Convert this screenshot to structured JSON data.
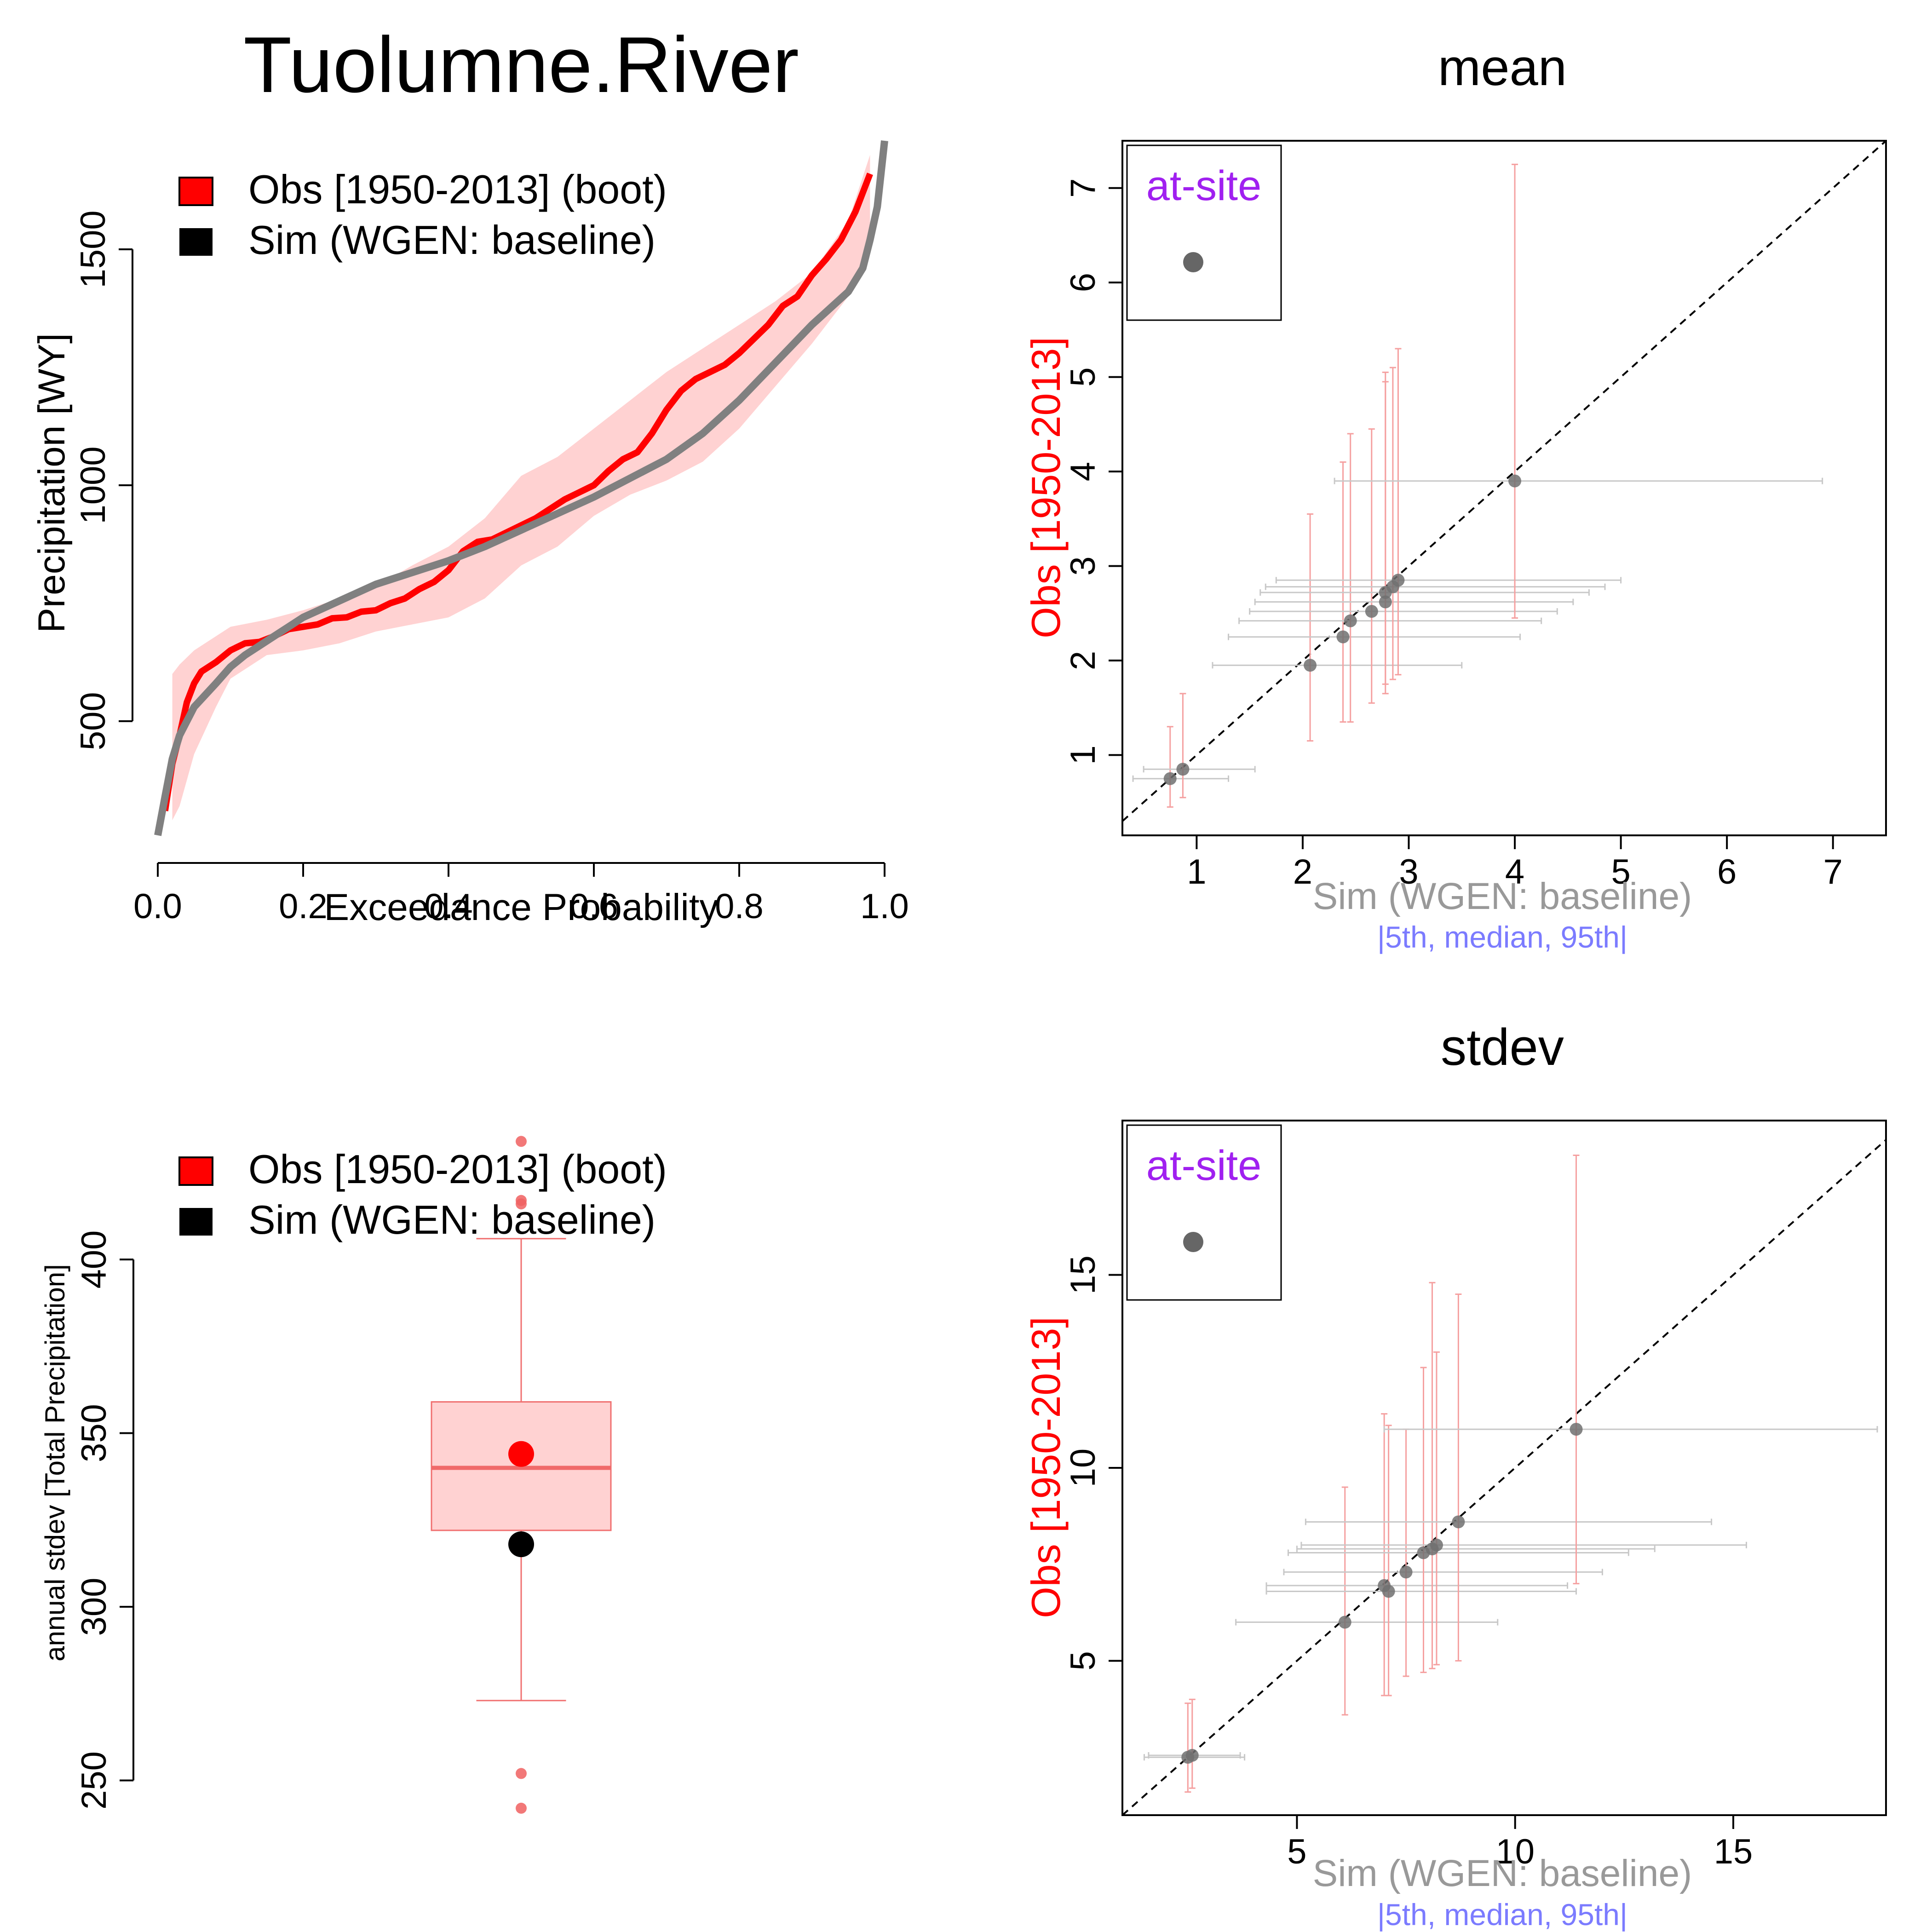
{
  "figure_title": "Tuolumne.River",
  "colors": {
    "obs": "#ff0000",
    "obs_band": "#ffd2d2",
    "sim": "#808080",
    "sim_marker": "#000000",
    "identity_line": "#000000",
    "legend_at_site": "#a020f0",
    "interval_caption": "#7b7bff",
    "sim_axis_label": "#999999"
  },
  "legends": {
    "top_left": [
      {
        "label": "Obs [1950-2013] (boot)",
        "color": "#ff0000"
      },
      {
        "label": "Sim (WGEN: baseline)",
        "color": "#000000"
      }
    ],
    "bottom_left": [
      {
        "label": "Obs [1950-2013] (boot)",
        "color": "#ff0000"
      },
      {
        "label": "Sim (WGEN: baseline)",
        "color": "#000000"
      }
    ],
    "at_site_label": "at-site"
  },
  "chart_data": [
    {
      "id": "exceedance",
      "type": "line",
      "title": "",
      "xlabel": "Exceedance Probability",
      "ylabel": "Precipitation [WY]",
      "xlim": [
        0,
        1
      ],
      "ylim": [
        258,
        1730
      ],
      "x_ticks": [
        0.0,
        0.2,
        0.4,
        0.6,
        0.8,
        1.0
      ],
      "x_tick_labels": [
        "0.0",
        "0.2",
        "0.4",
        "0.6",
        "0.8",
        "1.0"
      ],
      "y_ticks": [
        500,
        1000,
        1500
      ],
      "y_tick_labels": [
        "500",
        "1000",
        "1500"
      ],
      "legend_position": "top-left",
      "series": [
        {
          "name": "Obs [1950-2013] (boot)",
          "kind": "line",
          "x": [
            0.01,
            0.02,
            0.03,
            0.04,
            0.05,
            0.06,
            0.08,
            0.1,
            0.12,
            0.14,
            0.16,
            0.18,
            0.2,
            0.22,
            0.24,
            0.26,
            0.28,
            0.3,
            0.32,
            0.34,
            0.36,
            0.38,
            0.4,
            0.42,
            0.44,
            0.46,
            0.48,
            0.5,
            0.52,
            0.54,
            0.56,
            0.58,
            0.6,
            0.62,
            0.64,
            0.66,
            0.68,
            0.7,
            0.72,
            0.74,
            0.76,
            0.78,
            0.8,
            0.82,
            0.84,
            0.86,
            0.88,
            0.9,
            0.92,
            0.94,
            0.96,
            0.98
          ],
          "y": [
            310,
            410,
            470,
            540,
            580,
            605,
            625,
            650,
            665,
            668,
            680,
            695,
            700,
            705,
            718,
            720,
            732,
            735,
            750,
            760,
            780,
            795,
            820,
            860,
            880,
            885,
            900,
            915,
            930,
            950,
            970,
            985,
            1000,
            1030,
            1055,
            1070,
            1110,
            1160,
            1200,
            1225,
            1240,
            1255,
            1280,
            1310,
            1340,
            1380,
            1400,
            1445,
            1480,
            1520,
            1580,
            1660
          ]
        },
        {
          "name": "Obs band lower",
          "kind": "band_lower",
          "x": [
            0.02,
            0.03,
            0.05,
            0.08,
            0.1,
            0.15,
            0.2,
            0.25,
            0.3,
            0.35,
            0.4,
            0.45,
            0.5,
            0.55,
            0.6,
            0.65,
            0.7,
            0.75,
            0.8,
            0.85,
            0.9,
            0.95,
            0.98
          ],
          "y": [
            290,
            320,
            430,
            530,
            590,
            640,
            650,
            665,
            690,
            705,
            720,
            760,
            830,
            870,
            935,
            980,
            1010,
            1050,
            1120,
            1210,
            1300,
            1400,
            1500
          ]
        },
        {
          "name": "Obs band upper",
          "kind": "band_upper",
          "x": [
            0.02,
            0.03,
            0.05,
            0.08,
            0.1,
            0.15,
            0.2,
            0.25,
            0.3,
            0.35,
            0.4,
            0.45,
            0.5,
            0.55,
            0.6,
            0.65,
            0.7,
            0.75,
            0.8,
            0.85,
            0.9,
            0.95,
            0.98
          ],
          "y": [
            600,
            620,
            650,
            680,
            700,
            715,
            735,
            760,
            785,
            830,
            870,
            930,
            1020,
            1060,
            1120,
            1180,
            1240,
            1290,
            1340,
            1390,
            1450,
            1560,
            1700
          ]
        },
        {
          "name": "Sim (WGEN: baseline)",
          "kind": "line",
          "x": [
            0.0,
            0.01,
            0.02,
            0.03,
            0.05,
            0.08,
            0.1,
            0.12,
            0.15,
            0.2,
            0.25,
            0.3,
            0.35,
            0.4,
            0.45,
            0.5,
            0.55,
            0.6,
            0.65,
            0.7,
            0.75,
            0.8,
            0.85,
            0.9,
            0.95,
            0.97,
            0.98,
            0.99,
            1.0
          ],
          "y": [
            258,
            340,
            420,
            470,
            530,
            580,
            615,
            640,
            670,
            720,
            755,
            790,
            815,
            840,
            870,
            905,
            940,
            975,
            1015,
            1055,
            1110,
            1180,
            1260,
            1340,
            1410,
            1460,
            1520,
            1590,
            1730
          ]
        }
      ]
    },
    {
      "id": "mean",
      "type": "scatter",
      "title": "mean",
      "xlabel": "Sim (WGEN: baseline)",
      "xlabel_caption": "|5th, median, 95th|",
      "ylabel": "Obs [1950-2013]",
      "xlim": [
        0.3,
        7.5
      ],
      "ylim": [
        0.15,
        7.5
      ],
      "x_ticks": [
        1,
        2,
        3,
        4,
        5,
        6,
        7
      ],
      "x_tick_labels": [
        "1",
        "2",
        "3",
        "4",
        "5",
        "6",
        "7"
      ],
      "y_ticks": [
        1,
        2,
        3,
        4,
        5,
        6,
        7
      ],
      "y_tick_labels": [
        "1",
        "2",
        "3",
        "4",
        "5",
        "6",
        "7"
      ],
      "identity_line": true,
      "legend_position": "top-left",
      "points": [
        {
          "x": 0.75,
          "y": 0.75,
          "x_lo": 0.4,
          "x_hi": 1.3,
          "y_lo": 0.45,
          "y_hi": 1.3
        },
        {
          "x": 0.87,
          "y": 0.85,
          "x_lo": 0.5,
          "x_hi": 1.55,
          "y_lo": 0.55,
          "y_hi": 1.65
        },
        {
          "x": 2.07,
          "y": 1.95,
          "x_lo": 1.15,
          "x_hi": 3.5,
          "y_lo": 1.15,
          "y_hi": 3.55
        },
        {
          "x": 2.38,
          "y": 2.25,
          "x_lo": 1.3,
          "x_hi": 4.05,
          "y_lo": 1.35,
          "y_hi": 4.1
        },
        {
          "x": 2.45,
          "y": 2.42,
          "x_lo": 1.4,
          "x_hi": 4.25,
          "y_lo": 1.35,
          "y_hi": 4.4
        },
        {
          "x": 2.65,
          "y": 2.52,
          "x_lo": 1.5,
          "x_hi": 4.4,
          "y_lo": 1.55,
          "y_hi": 4.45
        },
        {
          "x": 2.78,
          "y": 2.62,
          "x_lo": 1.55,
          "x_hi": 4.55,
          "y_lo": 1.65,
          "y_hi": 5.05
        },
        {
          "x": 2.78,
          "y": 2.72,
          "x_lo": 1.6,
          "x_hi": 4.7,
          "y_lo": 1.75,
          "y_hi": 4.95
        },
        {
          "x": 2.85,
          "y": 2.78,
          "x_lo": 1.65,
          "x_hi": 4.85,
          "y_lo": 1.8,
          "y_hi": 5.1
        },
        {
          "x": 2.9,
          "y": 2.85,
          "x_lo": 1.75,
          "x_hi": 5.0,
          "y_lo": 1.85,
          "y_hi": 5.3
        },
        {
          "x": 4.0,
          "y": 3.9,
          "x_lo": 2.3,
          "x_hi": 6.9,
          "y_lo": 2.45,
          "y_hi": 7.25
        }
      ]
    },
    {
      "id": "stdev_box",
      "type": "box",
      "title": "",
      "xlabel": "",
      "ylabel": "annual stdev [Total Precipitation]",
      "ylim": [
        240,
        440
      ],
      "y_ticks": [
        250,
        300,
        350,
        400
      ],
      "y_tick_labels": [
        "250",
        "300",
        "350",
        "400"
      ],
      "legend_position": "top-left",
      "box": {
        "whisker_low": 273,
        "q1": 322,
        "median": 340,
        "q3": 359,
        "whisker_high": 406
      },
      "outliers": [
        434,
        417,
        416,
        252,
        242
      ],
      "obs_point": 344,
      "sim_point": 318
    },
    {
      "id": "stdev",
      "type": "scatter",
      "title": "stdev",
      "xlabel": "Sim (WGEN: baseline)",
      "xlabel_caption": "|5th, median, 95th|",
      "ylabel": "Obs [1950-2013]",
      "xlim": [
        1.0,
        18.5
      ],
      "ylim": [
        1.0,
        19.0
      ],
      "x_ticks": [
        5,
        10,
        15
      ],
      "x_tick_labels": [
        "5",
        "10",
        "15"
      ],
      "y_ticks": [
        5,
        10,
        15
      ],
      "y_tick_labels": [
        "5",
        "10",
        "15"
      ],
      "identity_line": true,
      "legend_position": "top-left",
      "points": [
        {
          "x": 2.5,
          "y": 2.5,
          "x_lo": 1.5,
          "x_hi": 3.8,
          "y_lo": 1.6,
          "y_hi": 3.9
        },
        {
          "x": 2.6,
          "y": 2.55,
          "x_lo": 1.6,
          "x_hi": 3.7,
          "y_lo": 1.7,
          "y_hi": 4.0
        },
        {
          "x": 6.1,
          "y": 6.0,
          "x_lo": 3.6,
          "x_hi": 9.6,
          "y_lo": 3.6,
          "y_hi": 9.5
        },
        {
          "x": 7.0,
          "y": 6.95,
          "x_lo": 4.3,
          "x_hi": 11.2,
          "y_lo": 4.1,
          "y_hi": 11.4
        },
        {
          "x": 7.1,
          "y": 6.8,
          "x_lo": 4.3,
          "x_hi": 11.4,
          "y_lo": 4.1,
          "y_hi": 11.1
        },
        {
          "x": 7.5,
          "y": 7.3,
          "x_lo": 4.7,
          "x_hi": 12.0,
          "y_lo": 4.6,
          "y_hi": 11.0
        },
        {
          "x": 7.9,
          "y": 7.8,
          "x_lo": 4.8,
          "x_hi": 12.6,
          "y_lo": 4.7,
          "y_hi": 12.6
        },
        {
          "x": 8.1,
          "y": 7.9,
          "x_lo": 5.0,
          "x_hi": 13.2,
          "y_lo": 4.8,
          "y_hi": 14.8
        },
        {
          "x": 8.2,
          "y": 8.0,
          "x_lo": 5.1,
          "x_hi": 15.3,
          "y_lo": 4.9,
          "y_hi": 13.0
        },
        {
          "x": 8.7,
          "y": 8.6,
          "x_lo": 5.2,
          "x_hi": 14.5,
          "y_lo": 5.0,
          "y_hi": 14.5
        },
        {
          "x": 11.4,
          "y": 11.0,
          "x_lo": 7.0,
          "x_hi": 18.3,
          "y_lo": 7.0,
          "y_hi": 18.1
        }
      ]
    }
  ]
}
